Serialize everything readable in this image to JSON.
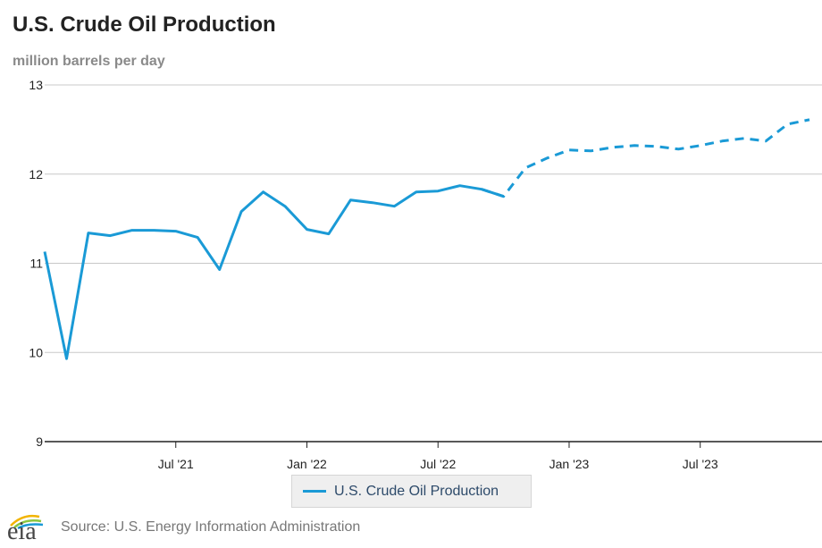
{
  "header": {
    "title": "U.S. Crude Oil Production",
    "subtitle": "million barrels per day"
  },
  "legend": {
    "label": "U.S. Crude Oil Production"
  },
  "footer": {
    "logo_text": "eia",
    "source": "Source: U.S. Energy Information Administration"
  },
  "colors": {
    "series": "#1a9ad6",
    "grid": "#c8c8c8",
    "axis": "#222222",
    "text": "#222222"
  },
  "chart_data": {
    "type": "line",
    "title": "U.S. Crude Oil Production",
    "ylabel": "million barrels per day",
    "xlabel": "",
    "ylim": [
      9,
      13
    ],
    "yticks": [
      9,
      10,
      11,
      12,
      13
    ],
    "xlim": [
      "2021-01",
      "2023-12"
    ],
    "xticks": [
      {
        "x": "2021-07",
        "label": "Jul '21"
      },
      {
        "x": "2022-01",
        "label": "Jan '22"
      },
      {
        "x": "2022-07",
        "label": "Jul '22"
      },
      {
        "x": "2023-01",
        "label": "Jan '23"
      },
      {
        "x": "2023-07",
        "label": "Jul '23"
      }
    ],
    "grid": true,
    "legend_position": "bottom-center",
    "series": [
      {
        "name": "U.S. Crude Oil Production",
        "style": "solid",
        "points": [
          {
            "x": "2021-01",
            "y": 11.13
          },
          {
            "x": "2021-02",
            "y": 9.93
          },
          {
            "x": "2021-03",
            "y": 11.34
          },
          {
            "x": "2021-04",
            "y": 11.31
          },
          {
            "x": "2021-05",
            "y": 11.37
          },
          {
            "x": "2021-06",
            "y": 11.37
          },
          {
            "x": "2021-07",
            "y": 11.36
          },
          {
            "x": "2021-08",
            "y": 11.29
          },
          {
            "x": "2021-09",
            "y": 10.93
          },
          {
            "x": "2021-10",
            "y": 11.58
          },
          {
            "x": "2021-11",
            "y": 11.8
          },
          {
            "x": "2021-12",
            "y": 11.64
          },
          {
            "x": "2022-01",
            "y": 11.38
          },
          {
            "x": "2022-02",
            "y": 11.33
          },
          {
            "x": "2022-03",
            "y": 11.71
          },
          {
            "x": "2022-04",
            "y": 11.68
          },
          {
            "x": "2022-05",
            "y": 11.64
          },
          {
            "x": "2022-06",
            "y": 11.8
          },
          {
            "x": "2022-07",
            "y": 11.81
          },
          {
            "x": "2022-08",
            "y": 11.87
          },
          {
            "x": "2022-09",
            "y": 11.83
          },
          {
            "x": "2022-10",
            "y": 11.75
          }
        ]
      },
      {
        "name": "U.S. Crude Oil Production",
        "style": "dashed",
        "points": [
          {
            "x": "2022-09",
            "y": 11.83
          },
          {
            "x": "2022-10",
            "y": 11.75
          },
          {
            "x": "2022-11",
            "y": 12.07
          },
          {
            "x": "2022-12",
            "y": 12.18
          },
          {
            "x": "2023-01",
            "y": 12.27
          },
          {
            "x": "2023-02",
            "y": 12.26
          },
          {
            "x": "2023-03",
            "y": 12.3
          },
          {
            "x": "2023-04",
            "y": 12.32
          },
          {
            "x": "2023-05",
            "y": 12.31
          },
          {
            "x": "2023-06",
            "y": 12.28
          },
          {
            "x": "2023-07",
            "y": 12.32
          },
          {
            "x": "2023-08",
            "y": 12.37
          },
          {
            "x": "2023-09",
            "y": 12.4
          },
          {
            "x": "2023-10",
            "y": 12.37
          },
          {
            "x": "2023-11",
            "y": 12.56
          },
          {
            "x": "2023-12",
            "y": 12.61
          }
        ]
      }
    ]
  }
}
